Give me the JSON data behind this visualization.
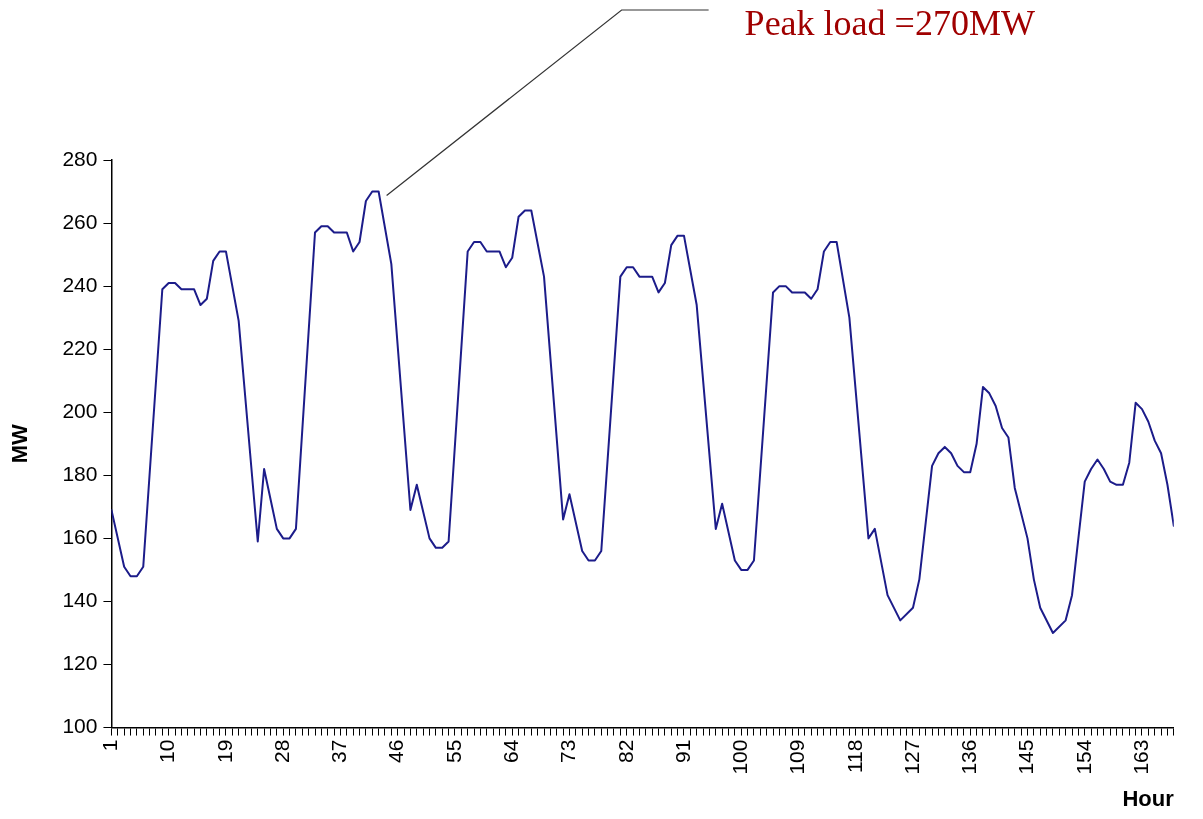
{
  "chart_data": {
    "type": "line",
    "xlabel": "Hour",
    "ylabel": "MW",
    "annotations": [
      {
        "text": "Peak load =270MW",
        "x": 43,
        "y": 270
      }
    ],
    "series": [
      {
        "color": "#1c1c8a",
        "x": [
          1,
          3,
          4,
          5,
          6,
          9,
          10,
          11,
          12,
          14,
          15,
          16,
          17,
          18,
          19,
          21,
          24,
          25,
          27,
          28,
          29,
          30,
          33,
          34,
          35,
          36,
          38,
          39,
          40,
          41,
          42,
          43,
          45,
          48,
          49,
          51,
          52,
          53,
          54,
          57,
          58,
          59,
          60,
          62,
          63,
          64,
          65,
          66,
          67,
          69,
          72,
          73,
          75,
          76,
          77,
          78,
          81,
          82,
          83,
          84,
          86,
          87,
          88,
          89,
          90,
          91,
          93,
          96,
          97,
          99,
          100,
          101,
          102,
          105,
          106,
          107,
          108,
          110,
          111,
          112,
          113,
          114,
          115,
          117,
          120,
          121,
          123,
          125,
          127,
          128,
          130,
          131,
          132,
          133,
          134,
          135,
          136,
          137,
          138,
          139,
          140,
          141,
          142,
          143,
          145,
          146,
          147,
          149,
          151,
          152,
          154,
          155,
          156,
          157,
          158,
          159,
          160,
          161,
          162,
          163,
          164,
          165,
          166,
          167,
          168
        ],
        "values": [
          169,
          151,
          148,
          148,
          151,
          239,
          241,
          241,
          239,
          239,
          234,
          236,
          248,
          251,
          251,
          229,
          159,
          182,
          163,
          160,
          160,
          163,
          257,
          259,
          259,
          257,
          257,
          251,
          254,
          267,
          270,
          270,
          247,
          169,
          177,
          160,
          157,
          157,
          159,
          251,
          254,
          254,
          251,
          251,
          246,
          249,
          262,
          264,
          264,
          243,
          166,
          174,
          156,
          153,
          153,
          156,
          243,
          246,
          246,
          243,
          243,
          238,
          241,
          253,
          256,
          256,
          234,
          163,
          171,
          153,
          150,
          150,
          153,
          238,
          240,
          240,
          238,
          238,
          236,
          239,
          251,
          254,
          254,
          230,
          160,
          163,
          142,
          134,
          138,
          147,
          183,
          187,
          189,
          187,
          183,
          181,
          181,
          190,
          208,
          206,
          202,
          195,
          192,
          176,
          160,
          147,
          138,
          130,
          134,
          142,
          178,
          182,
          185,
          182,
          178,
          177,
          177,
          184,
          203,
          201,
          197,
          191,
          187,
          177,
          164
        ]
      }
    ],
    "xlim": [
      1,
      168
    ],
    "xticks": [
      1,
      {
        "value": 2,
        "label": null
      },
      {
        "value": 3,
        "label": null
      },
      {
        "value": 4,
        "label": null
      },
      {
        "value": 5,
        "label": null
      },
      {
        "value": 6,
        "label": null
      },
      {
        "value": 7,
        "label": null
      },
      {
        "value": 8,
        "label": null
      },
      {
        "value": 9,
        "label": null
      },
      10,
      {
        "value": 11,
        "label": null
      },
      {
        "value": 12,
        "label": null
      },
      {
        "value": 13,
        "label": null
      },
      {
        "value": 14,
        "label": null
      },
      {
        "value": 15,
        "label": null
      },
      {
        "value": 16,
        "label": null
      },
      {
        "value": 17,
        "label": null
      },
      {
        "value": 18,
        "label": null
      },
      19,
      {
        "value": 20,
        "label": null
      },
      {
        "value": 21,
        "label": null
      },
      {
        "value": 22,
        "label": null
      },
      {
        "value": 23,
        "label": null
      },
      {
        "value": 24,
        "label": null
      },
      {
        "value": 25,
        "label": null
      },
      {
        "value": 26,
        "label": null
      },
      {
        "value": 27,
        "label": null
      },
      28,
      {
        "value": 29,
        "label": null
      },
      {
        "value": 30,
        "label": null
      },
      {
        "value": 31,
        "label": null
      },
      {
        "value": 32,
        "label": null
      },
      {
        "value": 33,
        "label": null
      },
      {
        "value": 34,
        "label": null
      },
      {
        "value": 35,
        "label": null
      },
      {
        "value": 36,
        "label": null
      },
      37,
      {
        "value": 38,
        "label": null
      },
      {
        "value": 39,
        "label": null
      },
      {
        "value": 40,
        "label": null
      },
      {
        "value": 41,
        "label": null
      },
      {
        "value": 42,
        "label": null
      },
      {
        "value": 43,
        "label": null
      },
      {
        "value": 44,
        "label": null
      },
      {
        "value": 45,
        "label": null
      },
      46,
      {
        "value": 47,
        "label": null
      },
      {
        "value": 48,
        "label": null
      },
      {
        "value": 49,
        "label": null
      },
      {
        "value": 50,
        "label": null
      },
      {
        "value": 51,
        "label": null
      },
      {
        "value": 52,
        "label": null
      },
      {
        "value": 53,
        "label": null
      },
      {
        "value": 54,
        "label": null
      },
      55,
      {
        "value": 56,
        "label": null
      },
      {
        "value": 57,
        "label": null
      },
      {
        "value": 58,
        "label": null
      },
      {
        "value": 59,
        "label": null
      },
      {
        "value": 60,
        "label": null
      },
      {
        "value": 61,
        "label": null
      },
      {
        "value": 62,
        "label": null
      },
      {
        "value": 63,
        "label": null
      },
      64,
      {
        "value": 65,
        "label": null
      },
      {
        "value": 66,
        "label": null
      },
      {
        "value": 67,
        "label": null
      },
      {
        "value": 68,
        "label": null
      },
      {
        "value": 69,
        "label": null
      },
      {
        "value": 70,
        "label": null
      },
      {
        "value": 71,
        "label": null
      },
      {
        "value": 72,
        "label": null
      },
      73,
      {
        "value": 74,
        "label": null
      },
      {
        "value": 75,
        "label": null
      },
      {
        "value": 76,
        "label": null
      },
      {
        "value": 77,
        "label": null
      },
      {
        "value": 78,
        "label": null
      },
      {
        "value": 79,
        "label": null
      },
      {
        "value": 80,
        "label": null
      },
      {
        "value": 81,
        "label": null
      },
      82,
      {
        "value": 83,
        "label": null
      },
      {
        "value": 84,
        "label": null
      },
      {
        "value": 85,
        "label": null
      },
      {
        "value": 86,
        "label": null
      },
      {
        "value": 87,
        "label": null
      },
      {
        "value": 88,
        "label": null
      },
      {
        "value": 89,
        "label": null
      },
      {
        "value": 90,
        "label": null
      },
      91,
      {
        "value": 92,
        "label": null
      },
      {
        "value": 93,
        "label": null
      },
      {
        "value": 94,
        "label": null
      },
      {
        "value": 95,
        "label": null
      },
      {
        "value": 96,
        "label": null
      },
      {
        "value": 97,
        "label": null
      },
      {
        "value": 98,
        "label": null
      },
      {
        "value": 99,
        "label": null
      },
      100,
      {
        "value": 101,
        "label": null
      },
      {
        "value": 102,
        "label": null
      },
      {
        "value": 103,
        "label": null
      },
      {
        "value": 104,
        "label": null
      },
      {
        "value": 105,
        "label": null
      },
      {
        "value": 106,
        "label": null
      },
      {
        "value": 107,
        "label": null
      },
      {
        "value": 108,
        "label": null
      },
      109,
      {
        "value": 110,
        "label": null
      },
      {
        "value": 111,
        "label": null
      },
      {
        "value": 112,
        "label": null
      },
      {
        "value": 113,
        "label": null
      },
      {
        "value": 114,
        "label": null
      },
      {
        "value": 115,
        "label": null
      },
      {
        "value": 116,
        "label": null
      },
      {
        "value": 117,
        "label": null
      },
      118,
      {
        "value": 119,
        "label": null
      },
      {
        "value": 120,
        "label": null
      },
      {
        "value": 121,
        "label": null
      },
      {
        "value": 122,
        "label": null
      },
      {
        "value": 123,
        "label": null
      },
      {
        "value": 124,
        "label": null
      },
      {
        "value": 125,
        "label": null
      },
      {
        "value": 126,
        "label": null
      },
      127,
      {
        "value": 128,
        "label": null
      },
      {
        "value": 129,
        "label": null
      },
      {
        "value": 130,
        "label": null
      },
      {
        "value": 131,
        "label": null
      },
      {
        "value": 132,
        "label": null
      },
      {
        "value": 133,
        "label": null
      },
      {
        "value": 134,
        "label": null
      },
      {
        "value": 135,
        "label": null
      },
      136,
      {
        "value": 137,
        "label": null
      },
      {
        "value": 138,
        "label": null
      },
      {
        "value": 139,
        "label": null
      },
      {
        "value": 140,
        "label": null
      },
      {
        "value": 141,
        "label": null
      },
      {
        "value": 142,
        "label": null
      },
      {
        "value": 143,
        "label": null
      },
      {
        "value": 144,
        "label": null
      },
      145,
      {
        "value": 146,
        "label": null
      },
      {
        "value": 147,
        "label": null
      },
      {
        "value": 148,
        "label": null
      },
      {
        "value": 149,
        "label": null
      },
      {
        "value": 150,
        "label": null
      },
      {
        "value": 151,
        "label": null
      },
      {
        "value": 152,
        "label": null
      },
      {
        "value": 153,
        "label": null
      },
      154,
      {
        "value": 155,
        "label": null
      },
      {
        "value": 156,
        "label": null
      },
      {
        "value": 157,
        "label": null
      },
      {
        "value": 158,
        "label": null
      },
      {
        "value": 159,
        "label": null
      },
      {
        "value": 160,
        "label": null
      },
      {
        "value": 161,
        "label": null
      },
      {
        "value": 162,
        "label": null
      },
      163,
      {
        "value": 164,
        "label": null
      },
      {
        "value": 165,
        "label": null
      },
      {
        "value": 166,
        "label": null
      },
      {
        "value": 167,
        "label": null
      },
      {
        "value": 168,
        "label": null
      }
    ],
    "ylim": [
      100,
      280
    ],
    "yticks": [
      100,
      120,
      140,
      160,
      180,
      200,
      220,
      240,
      260,
      280
    ],
    "grid": false,
    "legend": false,
    "marker": "none",
    "line_style": "solid"
  }
}
